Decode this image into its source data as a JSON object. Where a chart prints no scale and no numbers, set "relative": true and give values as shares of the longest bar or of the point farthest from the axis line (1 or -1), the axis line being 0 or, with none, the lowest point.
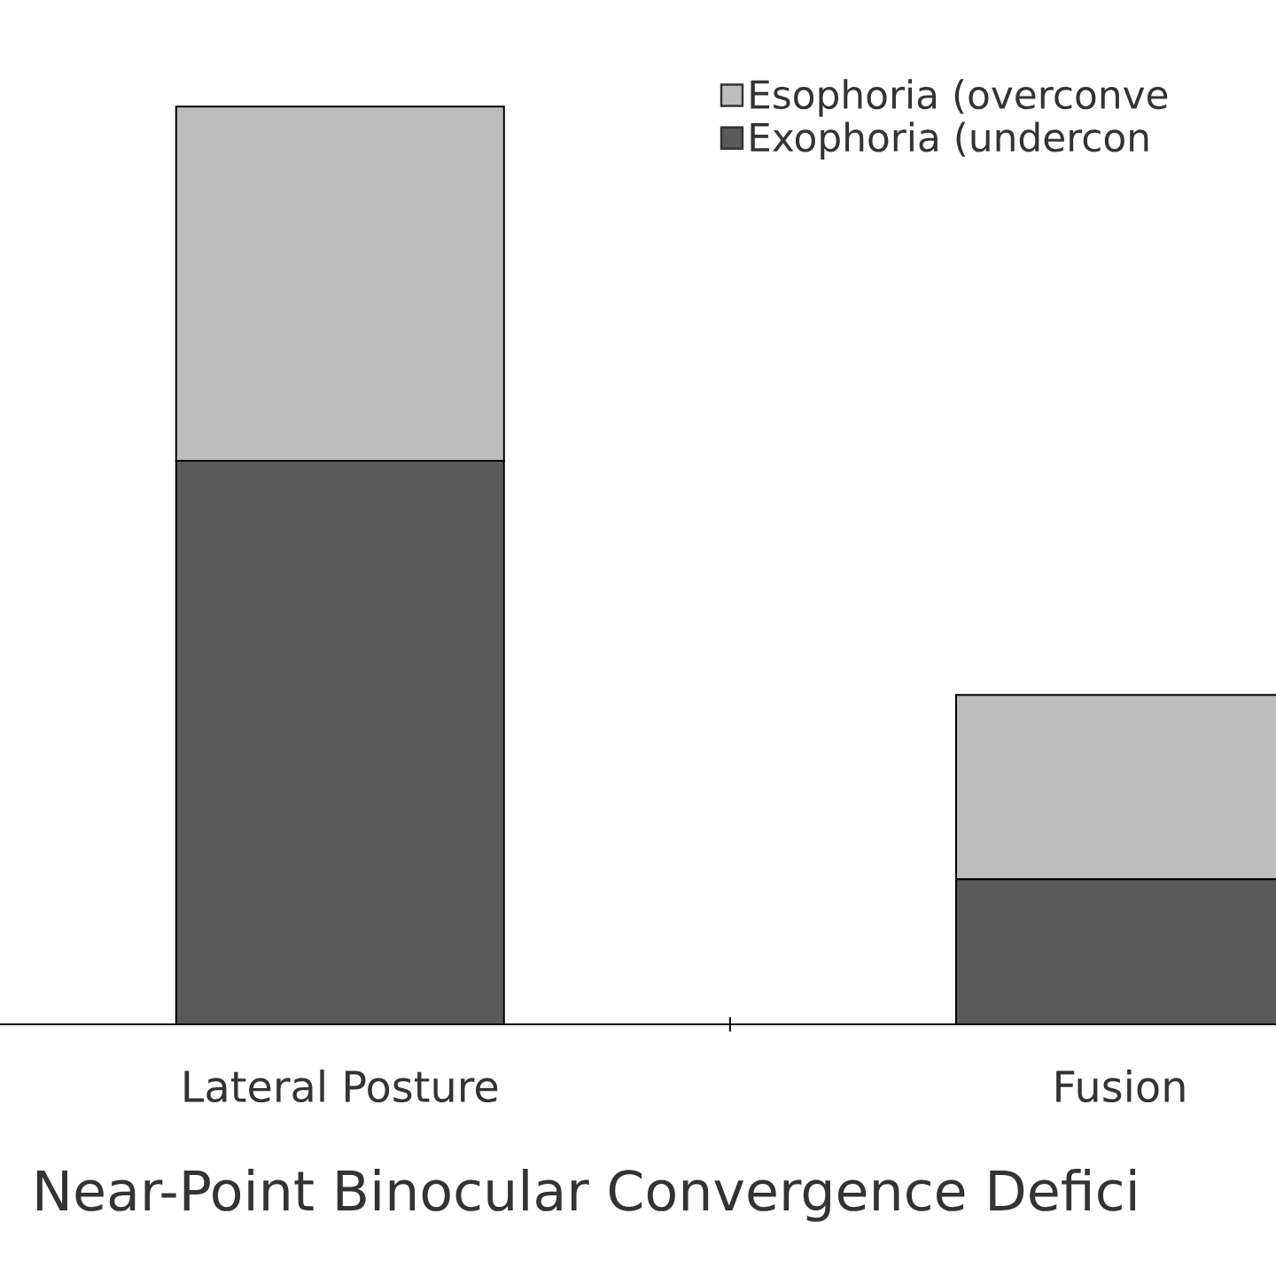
{
  "chart_data": {
    "type": "bar",
    "relative": true,
    "stacked": true,
    "legend": "top right",
    "xlabel": "Near-Point Binocular Convergence Defici",
    "categories": [
      "Lateral Posture",
      "Fusion"
    ],
    "series": [
      {
        "name": "Exophoria (undercon",
        "color": "#5a5a5a",
        "values": [
          0.614,
          0.158
        ]
      },
      {
        "name": "Esophoria (overconve",
        "color": "#bdbdbd",
        "values": [
          0.386,
          0.201
        ]
      }
    ]
  }
}
